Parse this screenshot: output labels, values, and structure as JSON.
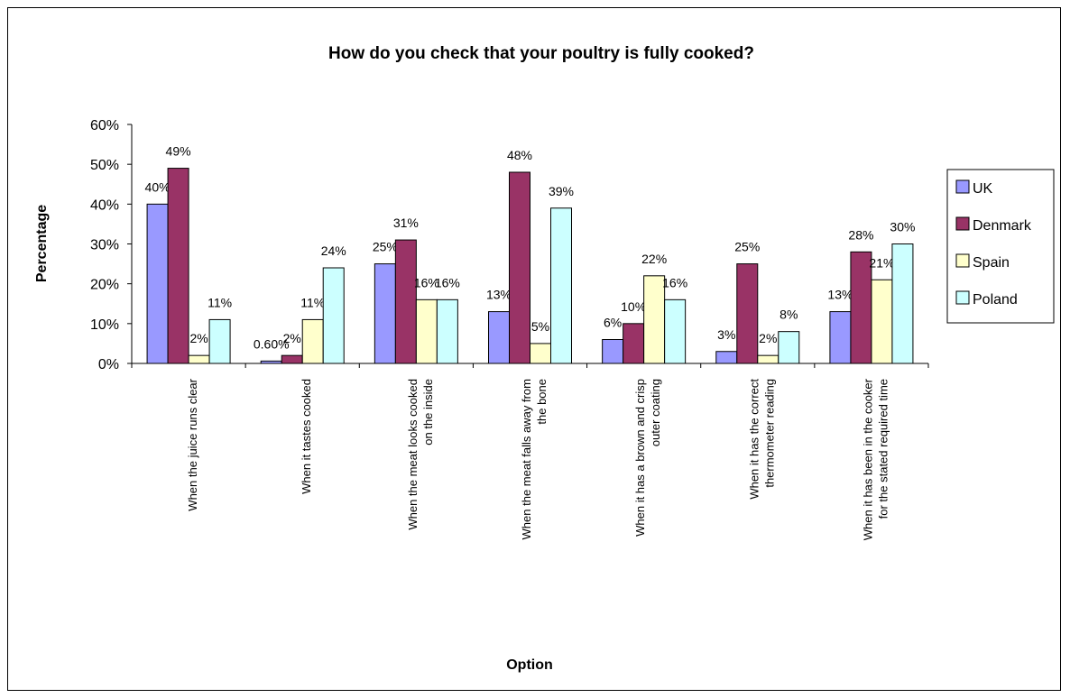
{
  "chart_data": {
    "type": "bar",
    "title": "How do you check that your poultry is fully cooked?",
    "xlabel": "Option",
    "ylabel": "Percentage",
    "ylim": [
      0,
      60
    ],
    "yticks": [
      "0%",
      "10%",
      "20%",
      "30%",
      "40%",
      "50%",
      "60%"
    ],
    "grid": false,
    "legend_position": "right",
    "categories": [
      [
        "When the juice runs clear"
      ],
      [
        "When it tastes cooked"
      ],
      [
        "When the meat looks cooked",
        "on the inside"
      ],
      [
        "When the meat falls away from",
        "the bone"
      ],
      [
        "When it has a brown and crisp",
        "outer coating"
      ],
      [
        "When it has the correct",
        "thermometer reading"
      ],
      [
        "When it has been in the cooker",
        "for the stated required time"
      ]
    ],
    "series": [
      {
        "name": "UK",
        "color": "#9999ff",
        "values": [
          40,
          0.6,
          25,
          13,
          6,
          3,
          13
        ],
        "labels": [
          "40%",
          "0.60%",
          "25%",
          "13%",
          "6%",
          "3%",
          "13%"
        ]
      },
      {
        "name": "Denmark",
        "color": "#993366",
        "values": [
          49,
          2,
          31,
          48,
          10,
          25,
          28
        ],
        "labels": [
          "49%",
          "2%",
          "31%",
          "48%",
          "10%",
          "25%",
          "28%"
        ]
      },
      {
        "name": "Spain",
        "color": "#ffffcc",
        "values": [
          2,
          11,
          16,
          5,
          22,
          2,
          21
        ],
        "labels": [
          "2%",
          "11%",
          "16%",
          "5%",
          "22%",
          "2%",
          "21%"
        ]
      },
      {
        "name": "Poland",
        "color": "#ccffff",
        "values": [
          11,
          24,
          16,
          39,
          16,
          8,
          30
        ],
        "labels": [
          "11%",
          "24%",
          "16%",
          "39%",
          "16%",
          "8%",
          "30%"
        ]
      }
    ]
  }
}
